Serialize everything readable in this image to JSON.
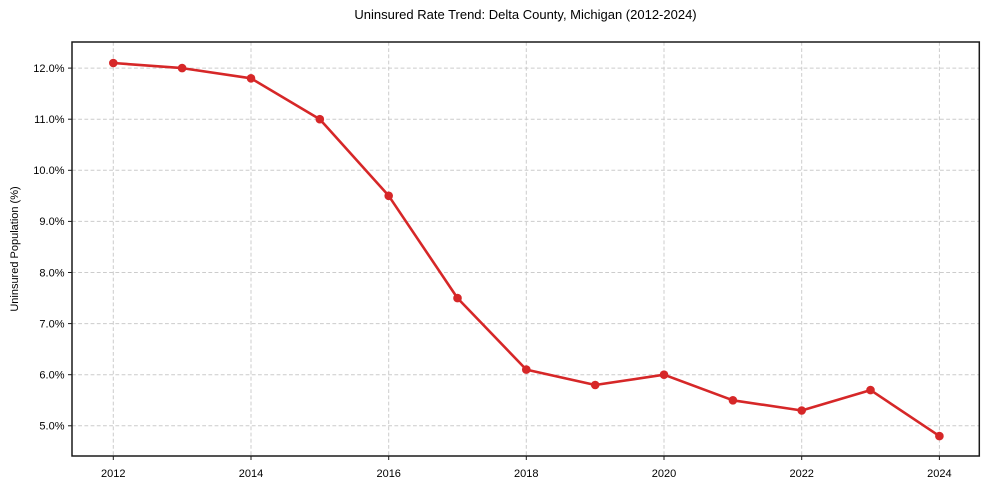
{
  "chart_data": {
    "type": "line",
    "title": "Uninsured Rate Trend: Delta County, Michigan (2012-2024)",
    "xlabel": "",
    "ylabel": "Uninsured Population (%)",
    "x": [
      2012,
      2013,
      2014,
      2015,
      2016,
      2017,
      2018,
      2019,
      2020,
      2021,
      2022,
      2023,
      2024
    ],
    "series": [
      {
        "name": "Uninsured rate",
        "values": [
          12.1,
          12.0,
          11.8,
          11.0,
          9.5,
          7.5,
          6.1,
          5.8,
          6.0,
          5.5,
          5.3,
          5.7,
          4.8
        ],
        "color": "#d62728",
        "marker": "circle"
      }
    ],
    "xticks": {
      "values": [
        2012,
        2014,
        2016,
        2018,
        2020,
        2022,
        2024
      ],
      "labels": [
        "2012",
        "2014",
        "2016",
        "2018",
        "2020",
        "2022",
        "2024"
      ]
    },
    "yticks": {
      "values": [
        5,
        6,
        7,
        8,
        9,
        10,
        11,
        12
      ],
      "labels": [
        "5.0%",
        "6.0%",
        "7.0%",
        "8.0%",
        "9.0%",
        "10.0%",
        "11.0%",
        "12.0%"
      ]
    },
    "xlim": [
      2011.4,
      2024.58
    ],
    "ylim": [
      4.41,
      12.51
    ],
    "grid": {
      "show": true,
      "style": "dashed",
      "color": "#cccccc"
    },
    "axis_color": "#1a1a1a",
    "text_color": "#000000",
    "background_color": "#ffffff",
    "legend": {
      "show": false
    }
  }
}
